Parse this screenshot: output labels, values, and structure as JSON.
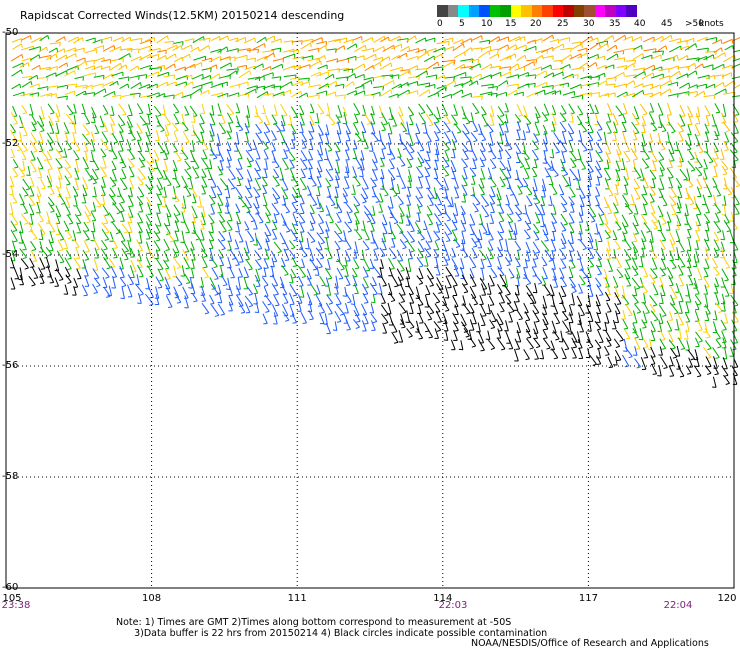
{
  "title": "Rapidscat Corrected Winds(12.5KM) 20150214 descending",
  "legend": {
    "unit": "knots",
    "labels": [
      "0",
      "5",
      "10",
      "15",
      "20",
      "25",
      "30",
      "35",
      "40",
      "45",
      ">50"
    ],
    "colors": [
      "#444444",
      "#888888",
      "#00ffff",
      "#00a0ff",
      "#0050ff",
      "#00c000",
      "#00a000",
      "#ffff00",
      "#ffc000",
      "#ff8000",
      "#ff4000",
      "#ff0000",
      "#c00000",
      "#804000",
      "#a05030",
      "#ff00ff",
      "#c000c0",
      "#8000ff",
      "#5000c0"
    ]
  },
  "x_ticks": [
    "105",
    "108",
    "111",
    "114",
    "117",
    "120"
  ],
  "y_ticks": [
    "-50",
    "-52",
    "-54",
    "-56",
    "-58",
    "-60"
  ],
  "times": [
    "23:38",
    "22:03",
    "22:04"
  ],
  "notes": {
    "line1": "Note: 1) Times are GMT 2)Times along bottom correspond to measurement at -50S",
    "line2": "      3)Data buffer is 22 hrs from 20150214 4) Black circles indicate possible contamination"
  },
  "credit": "NOAA/NESDIS/Office of Research and Applications",
  "map_data": {
    "lon_range": [
      105,
      120
    ],
    "lat_range": [
      -60,
      -50
    ],
    "grid": true
  }
}
